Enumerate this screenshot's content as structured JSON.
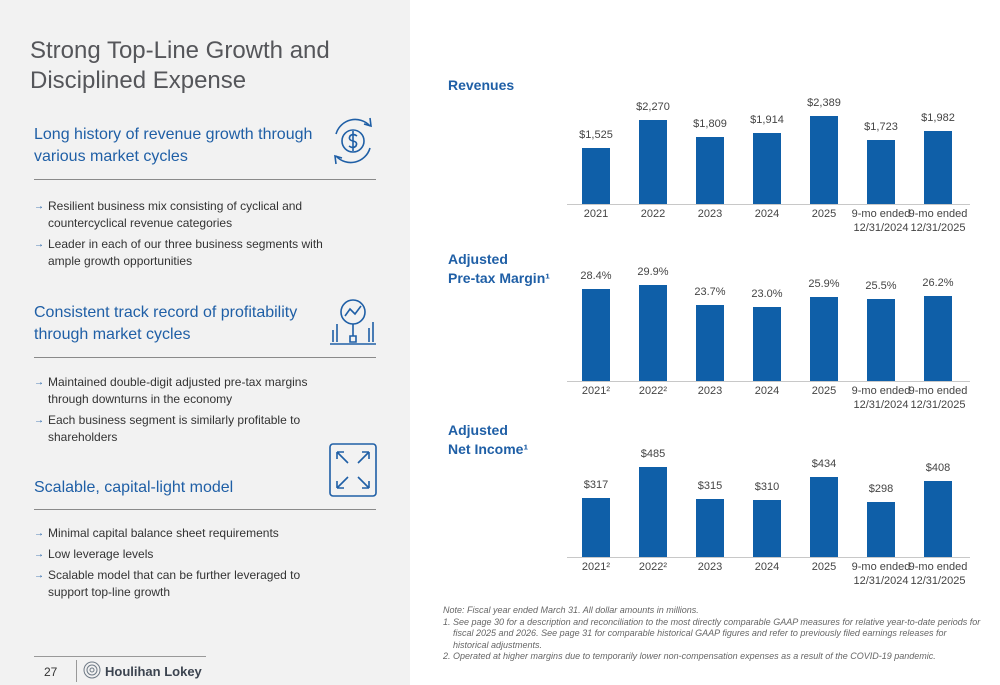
{
  "title": "Strong Top-Line Growth and Disciplined Expense",
  "sections": [
    {
      "heading": "Long history of revenue growth through various market cycles",
      "bullets": [
        "Resilient business mix consisting of cyclical and countercyclical revenue categories",
        "Leader in each of our three business segments with ample growth opportunities"
      ]
    },
    {
      "heading": "Consistent track record of profitability through market cycles",
      "bullets": [
        "Maintained double-digit adjusted pre-tax margins through downturns in the economy",
        "Each business segment is similarly profitable to shareholders"
      ]
    },
    {
      "heading": "Scalable, capital-light model",
      "bullets": [
        "Minimal capital balance sheet requirements",
        "Low leverage levels",
        "Scalable model that can be further leveraged to support top-line growth"
      ]
    }
  ],
  "chart_data": [
    {
      "type": "bar",
      "title": "Revenues",
      "color": "#0f5fa8",
      "categories": [
        "2021",
        "2022",
        "2023",
        "2024",
        "2025",
        "9-mo ended\n12/31/2024",
        "9-mo ended\n12/31/2025"
      ],
      "values": [
        1525,
        2270,
        1809,
        1914,
        2389,
        1723,
        1982
      ],
      "value_labels": [
        "$1,525",
        "$2,270",
        "$1,809",
        "$1,914",
        "$2,389",
        "$1,723",
        "$1,982"
      ],
      "ylim": [
        0,
        2700
      ]
    },
    {
      "type": "bar",
      "title": "Adjusted\nPre-tax Margin¹",
      "color": "#0f5fa8",
      "categories": [
        "2021²",
        "2022²",
        "2023",
        "2024",
        "2025",
        "9-mo ended\n12/31/2024",
        "9-mo ended\n12/31/2025"
      ],
      "values": [
        28.4,
        29.9,
        23.7,
        23.0,
        25.9,
        25.5,
        26.2
      ],
      "value_labels": [
        "28.4%",
        "29.9%",
        "23.7%",
        "23.0%",
        "25.9%",
        "25.5%",
        "26.2%"
      ],
      "ylim": [
        0,
        31
      ]
    },
    {
      "type": "bar",
      "title": "Adjusted\nNet Income¹",
      "color": "#0f5fa8",
      "categories": [
        "2021²",
        "2022²",
        "2023",
        "2024",
        "2025",
        "9-mo ended\n12/31/2024",
        "9-mo ended\n12/31/2025"
      ],
      "values": [
        317,
        485,
        315,
        310,
        434,
        298,
        408
      ],
      "value_labels": [
        "$317",
        "$485",
        "$315",
        "$310",
        "$434",
        "$298",
        "$408"
      ],
      "ylim": [
        0,
        540
      ]
    }
  ],
  "notes": [
    "Note: Fiscal year ended March 31. All dollar amounts in millions.",
    "1.  See page 30 for a description and reconciliation to the most directly comparable GAAP measures for relative year-to-date periods for fiscal 2025 and 2026. See page 31 for comparable historical GAAP figures and refer to previously filed earnings releases for historical adjustments.",
    "2. Operated at higher margins due to temporarily lower non-compensation expenses as a result of the COVID-19 pandemic."
  ],
  "footer": {
    "page": "27",
    "brand": "Houlihan Lokey"
  }
}
